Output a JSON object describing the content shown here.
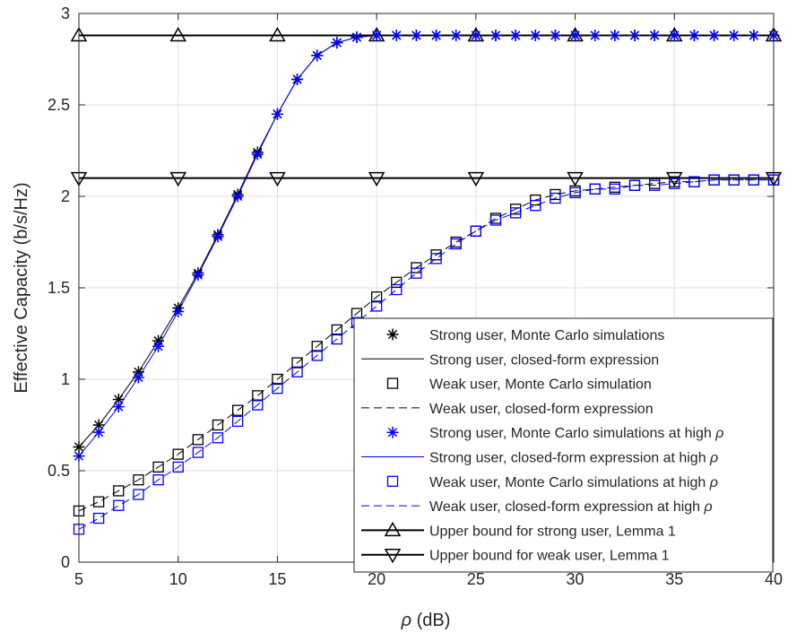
{
  "chart_data": {
    "type": "line",
    "xlabel_symbol": "ρ",
    "xlabel_unit": " (dB)",
    "ylabel": "Effective Capacity (b/s/Hz)",
    "xlim": [
      5,
      40
    ],
    "ylim": [
      0,
      3
    ],
    "xticks": [
      5,
      10,
      15,
      20,
      25,
      30,
      35,
      40
    ],
    "yticks": [
      0,
      0.5,
      1,
      1.5,
      2,
      2.5,
      3
    ],
    "ytick_labels": [
      "0",
      "0.5",
      "1",
      "1.5",
      "2",
      "2.5",
      "3"
    ],
    "grid": true,
    "legend_position": "bottom-right",
    "x": [
      5,
      6,
      7,
      8,
      9,
      10,
      11,
      12,
      13,
      14,
      15,
      16,
      17,
      18,
      19,
      20,
      21,
      22,
      23,
      24,
      25,
      26,
      27,
      28,
      29,
      30,
      31,
      32,
      33,
      34,
      35,
      36,
      37,
      38,
      39,
      40
    ],
    "series": [
      {
        "name": "Strong user, Monte Carlo simulations",
        "color": "#000000",
        "marker": "asterisk",
        "line": "none",
        "values": [
          0.63,
          0.75,
          0.89,
          1.04,
          1.21,
          1.39,
          1.58,
          1.79,
          2.01,
          2.24,
          2.45,
          2.64,
          2.77,
          2.84,
          2.87,
          2.88,
          2.88,
          2.88,
          2.88,
          2.88,
          2.88,
          2.88,
          2.88,
          2.88,
          2.88,
          2.88,
          2.88,
          2.88,
          2.88,
          2.88,
          2.88,
          2.88,
          2.88,
          2.88,
          2.88,
          2.88
        ]
      },
      {
        "name": "Strong user, closed-form expression",
        "color": "#000000",
        "marker": "none",
        "line": "solid",
        "values": [
          0.63,
          0.75,
          0.89,
          1.04,
          1.21,
          1.39,
          1.58,
          1.79,
          2.01,
          2.24,
          2.45,
          2.64,
          2.77,
          2.84,
          2.87,
          2.88,
          2.88,
          2.88,
          2.88,
          2.88,
          2.88,
          2.88,
          2.88,
          2.88,
          2.88,
          2.88,
          2.88,
          2.88,
          2.88,
          2.88,
          2.88,
          2.88,
          2.88,
          2.88,
          2.88,
          2.88
        ]
      },
      {
        "name": "Weak user, Monte Carlo simulation",
        "color": "#000000",
        "marker": "square",
        "line": "none",
        "values": [
          0.28,
          0.33,
          0.39,
          0.45,
          0.52,
          0.59,
          0.67,
          0.75,
          0.83,
          0.91,
          1.0,
          1.09,
          1.18,
          1.27,
          1.36,
          1.45,
          1.53,
          1.61,
          1.68,
          1.75,
          1.81,
          1.88,
          1.93,
          1.98,
          2.01,
          2.03,
          2.04,
          2.05,
          2.06,
          2.07,
          2.08,
          2.08,
          2.09,
          2.09,
          2.09,
          2.09
        ]
      },
      {
        "name": "Weak user, closed-form expression",
        "color": "#000000",
        "marker": "none",
        "line": "dashed",
        "values": [
          0.28,
          0.33,
          0.39,
          0.45,
          0.52,
          0.59,
          0.67,
          0.75,
          0.83,
          0.91,
          1.0,
          1.09,
          1.18,
          1.27,
          1.36,
          1.45,
          1.53,
          1.61,
          1.68,
          1.75,
          1.81,
          1.88,
          1.93,
          1.98,
          2.01,
          2.03,
          2.04,
          2.05,
          2.06,
          2.07,
          2.08,
          2.08,
          2.09,
          2.09,
          2.09,
          2.09
        ]
      },
      {
        "name": "Strong user, Monte Carlo simulations at high ρ",
        "color": "#0000ff",
        "marker": "asterisk",
        "line": "none",
        "values": [
          0.58,
          0.71,
          0.85,
          1.01,
          1.18,
          1.37,
          1.57,
          1.78,
          2.0,
          2.23,
          2.45,
          2.64,
          2.77,
          2.84,
          2.87,
          2.88,
          2.88,
          2.88,
          2.88,
          2.88,
          2.88,
          2.88,
          2.88,
          2.88,
          2.88,
          2.88,
          2.88,
          2.88,
          2.88,
          2.88,
          2.88,
          2.88,
          2.88,
          2.88,
          2.88,
          2.88
        ]
      },
      {
        "name": "Strong user, closed-form expression at high ρ",
        "color": "#0000ff",
        "marker": "none",
        "line": "solid",
        "values": [
          0.58,
          0.71,
          0.85,
          1.01,
          1.18,
          1.37,
          1.57,
          1.78,
          2.0,
          2.23,
          2.45,
          2.64,
          2.77,
          2.84,
          2.87,
          2.88,
          2.88,
          2.88,
          2.88,
          2.88,
          2.88,
          2.88,
          2.88,
          2.88,
          2.88,
          2.88,
          2.88,
          2.88,
          2.88,
          2.88,
          2.88,
          2.88,
          2.88,
          2.88,
          2.88,
          2.88
        ]
      },
      {
        "name": "Weak user, Monte Carlo simulations at high ρ",
        "color": "#0000ff",
        "marker": "square",
        "line": "none",
        "values": [
          0.18,
          0.24,
          0.31,
          0.37,
          0.45,
          0.52,
          0.6,
          0.68,
          0.77,
          0.86,
          0.95,
          1.04,
          1.13,
          1.22,
          1.31,
          1.4,
          1.49,
          1.58,
          1.66,
          1.74,
          1.81,
          1.87,
          1.91,
          1.95,
          1.99,
          2.02,
          2.04,
          2.04,
          2.06,
          2.06,
          2.07,
          2.08,
          2.09,
          2.09,
          2.09,
          2.09
        ]
      },
      {
        "name": "Weak user, closed-form expression at high ρ",
        "color": "#0000ff",
        "marker": "none",
        "line": "dashed",
        "values": [
          0.18,
          0.24,
          0.31,
          0.37,
          0.45,
          0.52,
          0.6,
          0.68,
          0.77,
          0.86,
          0.95,
          1.04,
          1.13,
          1.22,
          1.31,
          1.4,
          1.49,
          1.58,
          1.66,
          1.74,
          1.81,
          1.87,
          1.91,
          1.95,
          1.99,
          2.02,
          2.04,
          2.04,
          2.06,
          2.06,
          2.07,
          2.08,
          2.09,
          2.09,
          2.09,
          2.09
        ]
      },
      {
        "name": "Upper bound for strong user, Lemma 1",
        "color": "#000000",
        "marker": "triangle-up",
        "line": "solid",
        "thick": true,
        "x": [
          5,
          10,
          15,
          20,
          25,
          30,
          35,
          40
        ],
        "values": [
          2.88,
          2.88,
          2.88,
          2.88,
          2.88,
          2.88,
          2.88,
          2.88
        ]
      },
      {
        "name": "Upper bound for weak user, Lemma 1",
        "color": "#000000",
        "marker": "triangle-down",
        "line": "solid",
        "thick": true,
        "x": [
          5,
          10,
          15,
          20,
          25,
          30,
          35,
          40
        ],
        "values": [
          2.1,
          2.1,
          2.1,
          2.1,
          2.1,
          2.1,
          2.1,
          2.1
        ]
      }
    ]
  }
}
